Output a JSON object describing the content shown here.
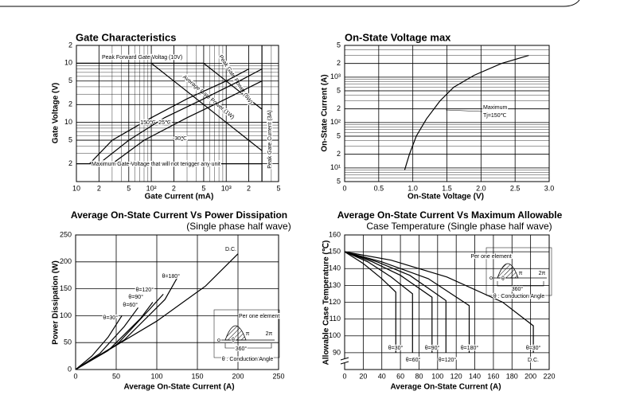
{
  "chart_data": [
    {
      "type": "line",
      "title": "Gate Characteristics",
      "xlabel": "Gate Current (mA)",
      "ylabel": "Gate Voltage (V)",
      "xlog": true,
      "ylog": true,
      "grid": true,
      "color": "#000000",
      "xlim": [
        10,
        5000
      ],
      "xticks": [
        10,
        {
          "value": 20,
          "label": "2"
        },
        {
          "value": 50,
          "label": "5"
        },
        {
          "value": 100,
          "label": "10²"
        },
        {
          "value": 200,
          "label": "2"
        },
        {
          "value": 500,
          "label": "5"
        },
        {
          "value": 1000,
          "label": "10³"
        },
        {
          "value": 2000,
          "label": "2"
        },
        {
          "value": 5000,
          "label": "5"
        }
      ],
      "ylim": [
        0.1,
        20
      ],
      "yticks": [
        {
          "value": 20,
          "label": "2"
        },
        10,
        5,
        2,
        {
          "value": 1,
          "label": "10"
        },
        {
          "value": 0.5,
          "label": "5"
        },
        {
          "value": 0.2,
          "label": "2"
        }
      ],
      "series": [
        {
          "name": "Peak Forward Gate Voltag (10V)",
          "x": [
            10,
            500
          ],
          "values": [
            10,
            10
          ]
        },
        {
          "name": "Peak Gate Power (5W)",
          "x": [
            500,
            1000,
            2000,
            3000
          ],
          "values": [
            10,
            5,
            2.5,
            1.67
          ]
        },
        {
          "name": "Average Gate Power (1W)",
          "x": [
            100,
            200,
            500,
            1000,
            2000,
            3000
          ],
          "values": [
            10,
            5,
            2,
            1,
            0.5,
            0.333
          ]
        },
        {
          "name": "Peak Gate Current (3A)",
          "x": [
            3000,
            3000
          ],
          "values": [
            0.1,
            20
          ]
        },
        {
          "name": "150℃",
          "x": [
            15,
            30,
            100,
            300,
            1000,
            2000
          ],
          "values": [
            0.2,
            0.5,
            1.2,
            2.5,
            5,
            8
          ]
        },
        {
          "name": "25℃",
          "x": [
            20,
            50,
            150,
            500,
            1500,
            3000
          ],
          "values": [
            0.2,
            0.5,
            1.2,
            2.5,
            5,
            8
          ]
        },
        {
          "name": "-30℃",
          "x": [
            30,
            80,
            300,
            1000,
            3000
          ],
          "values": [
            0.2,
            0.5,
            1.2,
            2.5,
            5
          ]
        },
        {
          "name": "Maximum Gate Voltage that will not terigger any unit",
          "x": [
            10,
            3000
          ],
          "values": [
            0.2,
            0.2
          ]
        }
      ]
    },
    {
      "type": "line",
      "title": "On-State Voltage max",
      "xlabel": "On-State Voltage (V)",
      "ylabel": "On-State Current (A)",
      "xlog": false,
      "ylog": true,
      "grid": true,
      "color": "#000000",
      "xlim": [
        0,
        3
      ],
      "xticks": [
        0,
        0.5,
        {
          "value": 1,
          "label": "1.0"
        },
        1.5,
        {
          "value": 2,
          "label": "2.0"
        },
        2.5,
        {
          "value": 3,
          "label": "3.0"
        }
      ],
      "ylim": [
        5,
        5000
      ],
      "yticks": [
        5,
        {
          "value": 10,
          "label": "10¹"
        },
        {
          "value": 20,
          "label": "2"
        },
        {
          "value": 50,
          "label": "5"
        },
        {
          "value": 100,
          "label": "10²"
        },
        {
          "value": 200,
          "label": "2"
        },
        {
          "value": 500,
          "label": "5"
        },
        {
          "value": 1000,
          "label": "10³"
        },
        {
          "value": 2000,
          "label": "2"
        },
        {
          "value": 5000,
          "label": "5"
        }
      ],
      "series": [
        {
          "name": "Maximum Tj=150℃",
          "x": [
            0.88,
            0.95,
            1.05,
            1.2,
            1.4,
            1.6,
            1.9,
            2.3,
            2.7
          ],
          "values": [
            9,
            20,
            50,
            120,
            300,
            600,
            1100,
            2000,
            3000
          ]
        }
      ],
      "annotations": [
        "Maximum",
        "Tj=150℃"
      ]
    },
    {
      "type": "line",
      "title": "Average On-State Current Vs Power Dissipation",
      "subtitle": "(Single phase half wave)",
      "xlabel": "Average On-State Current (A)",
      "ylabel": "Power Dissipation (W)",
      "xlog": false,
      "ylog": false,
      "grid": true,
      "color": "#000000",
      "xlim": [
        0,
        250
      ],
      "xticks": [
        0,
        50,
        100,
        150,
        200,
        250
      ],
      "ylim": [
        0,
        250
      ],
      "yticks": [
        0,
        50,
        100,
        150,
        200,
        250
      ],
      "series": [
        {
          "name": "θ=30°",
          "x": [
            0,
            20,
            40,
            57
          ],
          "values": [
            0,
            25,
            60,
            100
          ]
        },
        {
          "name": "θ=60°",
          "x": [
            0,
            30,
            60,
            77
          ],
          "values": [
            0,
            30,
            80,
            115
          ]
        },
        {
          "name": "θ=90°",
          "x": [
            0,
            40,
            80,
            95
          ],
          "values": [
            0,
            35,
            95,
            125
          ]
        },
        {
          "name": "θ=120°",
          "x": [
            0,
            50,
            90,
            108
          ],
          "values": [
            0,
            45,
            110,
            140
          ]
        },
        {
          "name": "θ=180°",
          "x": [
            0,
            60,
            110,
            125
          ],
          "values": [
            0,
            55,
            130,
            170
          ]
        },
        {
          "name": "D.C.",
          "x": [
            0,
            100,
            160,
            200
          ],
          "values": [
            0,
            90,
            155,
            215
          ]
        }
      ],
      "annotations": [
        "Per one element",
        "π",
        "2π",
        "θ",
        "360°",
        "θ : Conduction Angle"
      ]
    },
    {
      "type": "line",
      "title": "Average On-State Current Vs Maximum Allowable",
      "subtitle": "Case Temperature (Single phase half wave)",
      "xlabel": "Average On-State Current (A)",
      "ylabel": "Allowable Case Temperature (℃)",
      "xlog": false,
      "ylog": false,
      "grid": true,
      "color": "#000000",
      "xlim": [
        0,
        220
      ],
      "xticks": [
        0,
        20,
        40,
        60,
        80,
        100,
        120,
        140,
        160,
        180,
        200,
        220
      ],
      "ylim": [
        80,
        160
      ],
      "yticks": [
        90,
        100,
        110,
        120,
        130,
        140,
        150,
        160
      ],
      "series": [
        {
          "name": "θ=30°",
          "x": [
            0,
            20,
            40,
            55,
            55
          ],
          "values": [
            150,
            143,
            134,
            126,
            90
          ]
        },
        {
          "name": "θ=60°",
          "x": [
            0,
            25,
            50,
            73,
            73
          ],
          "values": [
            150,
            144,
            135,
            125,
            90
          ]
        },
        {
          "name": "θ=90°",
          "x": [
            0,
            30,
            60,
            94,
            94
          ],
          "values": [
            150,
            144,
            136,
            123,
            90
          ]
        },
        {
          "name": "θ=120°",
          "x": [
            0,
            35,
            70,
            109,
            109
          ],
          "values": [
            150,
            144,
            136,
            121,
            90
          ]
        },
        {
          "name": "θ=180°",
          "x": [
            0,
            40,
            90,
            134,
            134
          ],
          "values": [
            150,
            144,
            134,
            118,
            90
          ]
        },
        {
          "name": "D.C.",
          "x": [
            0,
            50,
            110,
            170,
            203,
            203
          ],
          "values": [
            150,
            145,
            135,
            120,
            106,
            90
          ]
        }
      ],
      "annotations": [
        "Per one element",
        "π",
        "2π",
        "θ",
        "360°",
        "θ : Conduction Angle",
        "θ=30°"
      ]
    }
  ]
}
